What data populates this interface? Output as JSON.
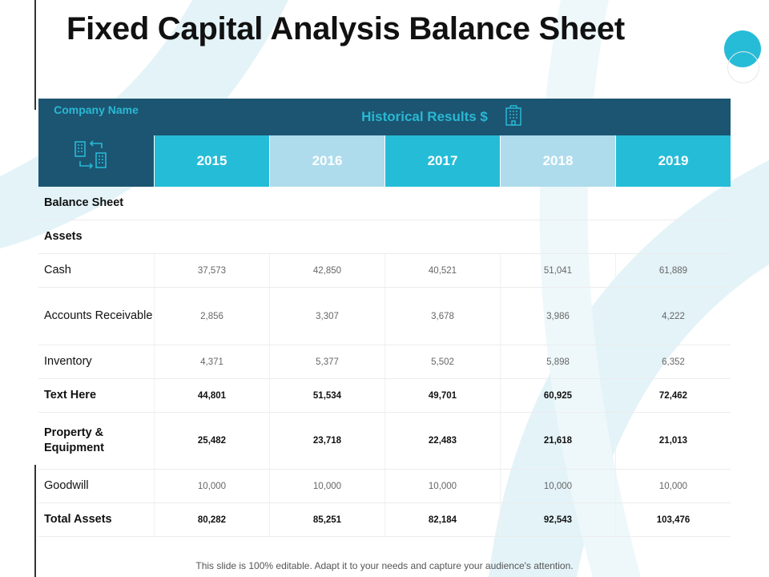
{
  "page": {
    "title": "Fixed Capital Analysis Balance Sheet"
  },
  "colors": {
    "dark_header": "#1b5572",
    "accent": "#25bcd7",
    "light_accent": "#aedcec",
    "bg_shape": "#e3f3f8"
  },
  "table": {
    "company_label": "Company Name",
    "company_icon": "building-transfer-icon",
    "historical_label": "Historical Results $",
    "historical_icon": "office-building-icon",
    "years": [
      "2015",
      "2016",
      "2017",
      "2018",
      "2019"
    ],
    "rows": [
      {
        "label": "Balance Sheet",
        "values": []
      },
      {
        "label": "Assets",
        "values": []
      },
      {
        "label": "Cash",
        "values": [
          "37,573",
          "42,850",
          "40,521",
          "51,041",
          "61,889"
        ]
      },
      {
        "label": "Accounts Receivable",
        "values": [
          "2,856",
          "3,307",
          "3,678",
          "3,986",
          "4,222"
        ]
      },
      {
        "label": "Inventory",
        "values": [
          "4,371",
          "5,377",
          "5,502",
          "5,898",
          "6,352"
        ]
      },
      {
        "label": "Text Here",
        "values": [
          "44,801",
          "51,534",
          "49,701",
          "60,925",
          "72,462"
        ]
      },
      {
        "label": "Property & Equipment",
        "values": [
          "25,482",
          "23,718",
          "22,483",
          "21,618",
          "21,013"
        ]
      },
      {
        "label": "Goodwill",
        "values": [
          "10,000",
          "10,000",
          "10,000",
          "10,000",
          "10,000"
        ]
      },
      {
        "label": "Total Assets",
        "values": [
          "80,282",
          "85,251",
          "82,184",
          "92,543",
          "103,476"
        ]
      }
    ]
  },
  "footer": {
    "text": "This slide is 100% editable. Adapt it to your needs and capture your audience's attention."
  }
}
